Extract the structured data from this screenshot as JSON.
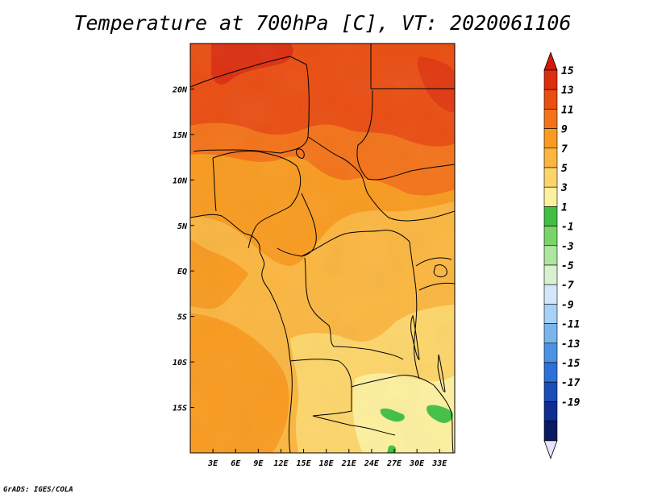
{
  "title": "Temperature at 700hPa [C], VT: 2020061106",
  "credit": "GrADS: IGES/COLA",
  "map": {
    "lon_range": [
      0,
      35
    ],
    "lat_range": [
      -20,
      25
    ],
    "lon_ticks": [
      {
        "value": 3,
        "label": "3E"
      },
      {
        "value": 6,
        "label": "6E"
      },
      {
        "value": 9,
        "label": "9E"
      },
      {
        "value": 12,
        "label": "12E"
      },
      {
        "value": 15,
        "label": "15E"
      },
      {
        "value": 18,
        "label": "18E"
      },
      {
        "value": 21,
        "label": "21E"
      },
      {
        "value": 24,
        "label": "24E"
      },
      {
        "value": 27,
        "label": "27E"
      },
      {
        "value": 30,
        "label": "30E"
      },
      {
        "value": 33,
        "label": "33E"
      }
    ],
    "lat_ticks": [
      {
        "value": 20,
        "label": "20N"
      },
      {
        "value": 15,
        "label": "15N"
      },
      {
        "value": 10,
        "label": "10N"
      },
      {
        "value": 5,
        "label": "5N"
      },
      {
        "value": 0,
        "label": "EQ"
      },
      {
        "value": -5,
        "label": "5S"
      },
      {
        "value": -10,
        "label": "10S"
      },
      {
        "value": -15,
        "label": "15S"
      }
    ]
  },
  "colorbar": {
    "levels": [
      "15",
      "13",
      "11",
      "9",
      "7",
      "5",
      "3",
      "1",
      "-1",
      "-3",
      "-5",
      "-7",
      "-9",
      "-11",
      "-13",
      "-15",
      "-17",
      "-19"
    ],
    "colors": [
      "#dc2f10",
      "#e94e12",
      "#f3731a",
      "#f89b20",
      "#fab640",
      "#fcd56a",
      "#fcef9e",
      "#41bf44",
      "#79d56a",
      "#ade69e",
      "#d8f1d1",
      "#d2e8fa",
      "#a7d2f6",
      "#7ab5ee",
      "#4c93e4",
      "#2c71d7",
      "#1c4cb6",
      "#102d90",
      "#081a63"
    ],
    "top_color": "#d21a0c",
    "bottom_color": "#e6e3ff"
  }
}
